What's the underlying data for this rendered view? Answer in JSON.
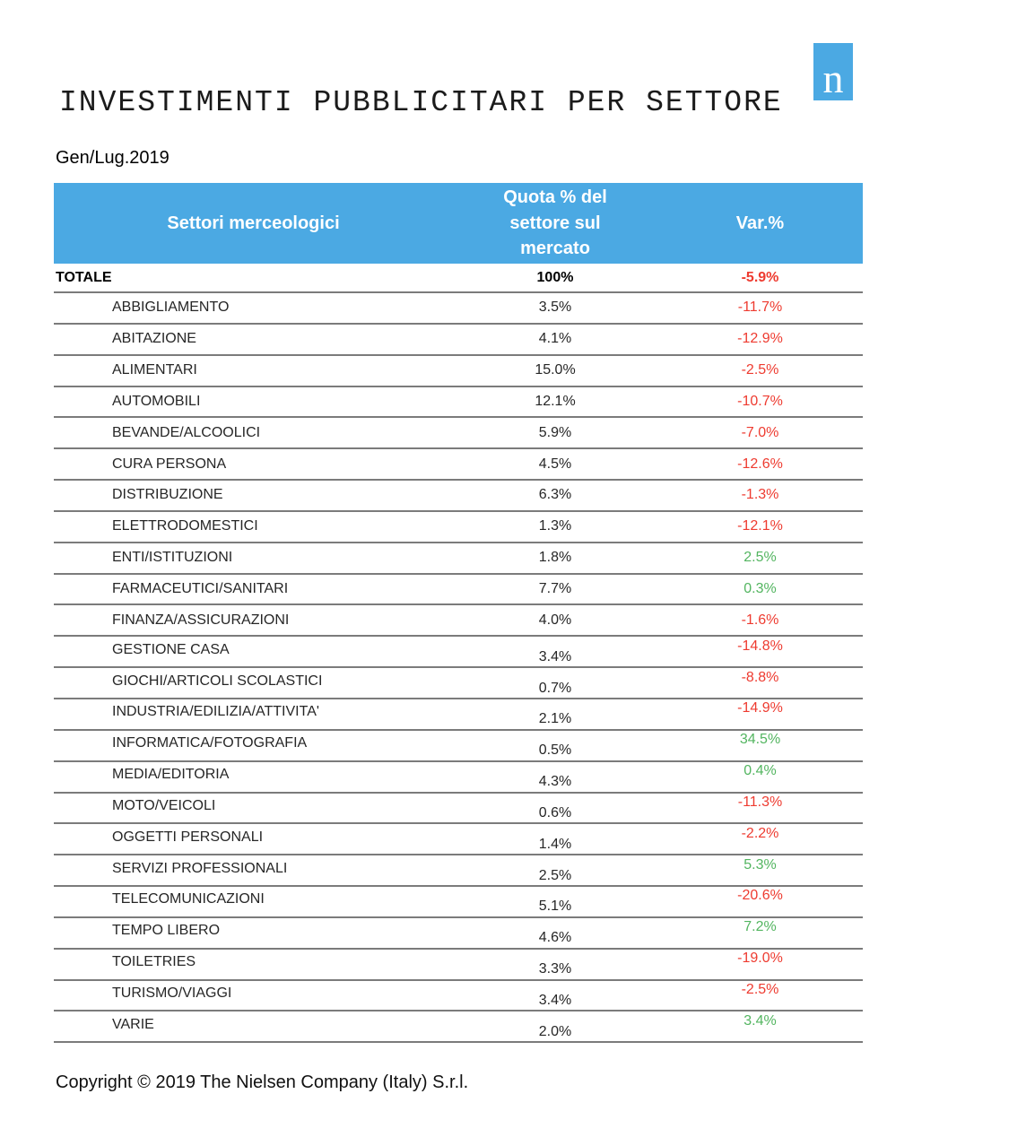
{
  "header": {
    "title": "INVESTIMENTI PUBBLICITARI PER SETTORE",
    "period": "Gen/Lug.2019",
    "logo_letter": "n"
  },
  "table": {
    "columns": {
      "sector": "Settori merceologici",
      "quota": "Quota % del\nsettore sul\nmercato",
      "var": "Var.%"
    },
    "total_row": {
      "sector": "TOTALE",
      "quota": "100%",
      "var": "-5.9%"
    },
    "rows": [
      {
        "sector": "ABBIGLIAMENTO",
        "quota": "3.5%",
        "var": "-11.7%"
      },
      {
        "sector": "ABITAZIONE",
        "quota": "4.1%",
        "var": "-12.9%"
      },
      {
        "sector": "ALIMENTARI",
        "quota": "15.0%",
        "var": "-2.5%"
      },
      {
        "sector": "AUTOMOBILI",
        "quota": "12.1%",
        "var": "-10.7%"
      },
      {
        "sector": "BEVANDE/ALCOOLICI",
        "quota": "5.9%",
        "var": "-7.0%"
      },
      {
        "sector": "CURA PERSONA",
        "quota": "4.5%",
        "var": "-12.6%"
      },
      {
        "sector": "DISTRIBUZIONE",
        "quota": "6.3%",
        "var": "-1.3%"
      },
      {
        "sector": "ELETTRODOMESTICI",
        "quota": "1.3%",
        "var": "-12.1%"
      },
      {
        "sector": "ENTI/ISTITUZIONI",
        "quota": "1.8%",
        "var": "2.5%"
      },
      {
        "sector": "FARMACEUTICI/SANITARI",
        "quota": "7.7%",
        "var": "0.3%"
      },
      {
        "sector": "FINANZA/ASSICURAZIONI",
        "quota": "4.0%",
        "var": "-1.6%"
      },
      {
        "sector": "GESTIONE CASA",
        "quota": "3.4%",
        "var": "-14.8%"
      },
      {
        "sector": "GIOCHI/ARTICOLI SCOLASTICI",
        "quota": "0.7%",
        "var": "-8.8%"
      },
      {
        "sector": "INDUSTRIA/EDILIZIA/ATTIVITA'",
        "quota": "2.1%",
        "var": "-14.9%"
      },
      {
        "sector": "INFORMATICA/FOTOGRAFIA",
        "quota": "0.5%",
        "var": "34.5%"
      },
      {
        "sector": "MEDIA/EDITORIA",
        "quota": "4.3%",
        "var": "0.4%"
      },
      {
        "sector": "MOTO/VEICOLI",
        "quota": "0.6%",
        "var": "-11.3%"
      },
      {
        "sector": "OGGETTI PERSONALI",
        "quota": "1.4%",
        "var": "-2.2%"
      },
      {
        "sector": "SERVIZI PROFESSIONALI",
        "quota": "2.5%",
        "var": "5.3%"
      },
      {
        "sector": "TELECOMUNICAZIONI",
        "quota": "5.1%",
        "var": "-20.6%"
      },
      {
        "sector": "TEMPO LIBERO",
        "quota": "4.6%",
        "var": "7.2%"
      },
      {
        "sector": "TOILETRIES",
        "quota": "3.3%",
        "var": "-19.0%"
      },
      {
        "sector": "TURISMO/VIAGGI",
        "quota": "3.4%",
        "var": "-2.5%"
      },
      {
        "sector": "VARIE",
        "quota": "2.0%",
        "var": "3.4%"
      }
    ]
  },
  "footer": {
    "copyright": "Copyright © 2019 The Nielsen Company (Italy) S.r.l."
  },
  "colors": {
    "header_bg": "#4BA9E3",
    "logo_bg": "#4BA9E3",
    "negative": "#EE3B30",
    "positive": "#53B560",
    "row_line": "#7B7B7B"
  }
}
